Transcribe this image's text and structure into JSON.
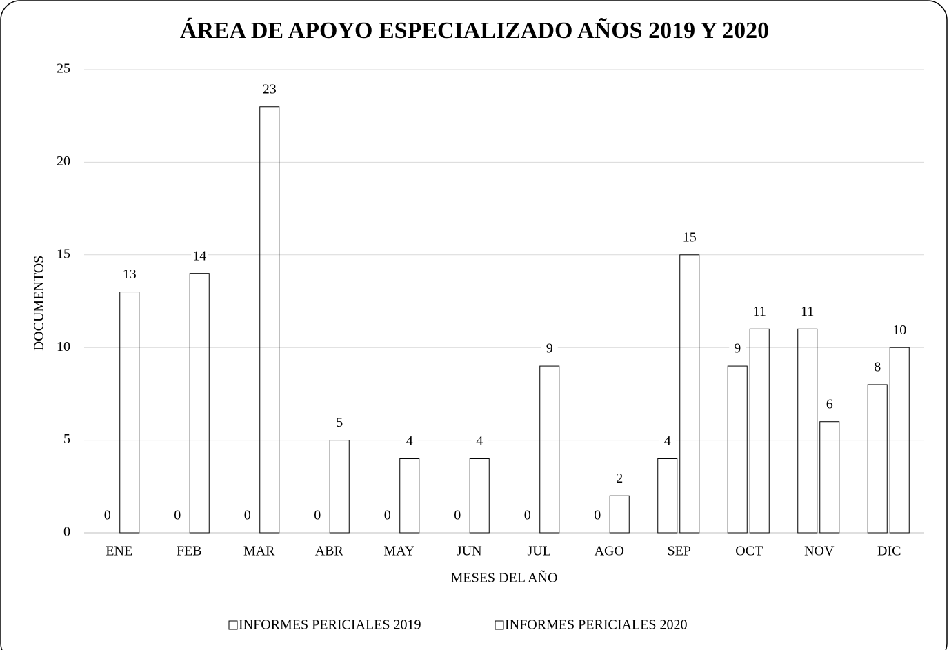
{
  "chart_data": {
    "type": "bar",
    "title": "ÁREA DE APOYO ESPECIALIZADO AÑOS 2019 Y 2020",
    "x_label": "MESES DEL AÑO",
    "y_label": "DOCUMENTOS",
    "categories": [
      "ENE",
      "FEB",
      "MAR",
      "ABR",
      "MAY",
      "JUN",
      "JUL",
      "AGO",
      "SEP",
      "OCT",
      "NOV",
      "DIC"
    ],
    "series": [
      {
        "name": "INFORMES PERICIALES 2019",
        "values": [
          0,
          0,
          0,
          0,
          0,
          0,
          0,
          0,
          4,
          9,
          11,
          8
        ]
      },
      {
        "name": "INFORMES PERICIALES 2020",
        "values": [
          13,
          14,
          23,
          5,
          4,
          4,
          9,
          2,
          15,
          11,
          6,
          10
        ]
      }
    ],
    "ylim": [
      0,
      25
    ],
    "yticks": [
      0,
      5,
      10,
      15,
      20,
      25
    ],
    "grid": true
  }
}
